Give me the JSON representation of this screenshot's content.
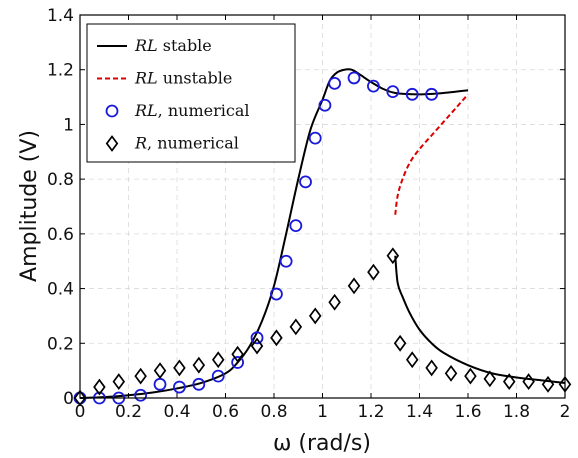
{
  "chart_data": {
    "type": "line",
    "title": "",
    "xlabel": "ω (rad/s)",
    "ylabel": "Amplitude (V)",
    "xlim": [
      0,
      2
    ],
    "ylim": [
      0,
      1.4
    ],
    "xticks": [
      "0",
      "0.2",
      "0.4",
      "0.6",
      "0.8",
      "1",
      "1.2",
      "1.4",
      "1.6",
      "1.8",
      "2"
    ],
    "yticks": [
      "0",
      "0.2",
      "0.4",
      "0.6",
      "0.8",
      "1",
      "1.2",
      "1.4"
    ],
    "grid": true,
    "legend_position": "top-left",
    "series": [
      {
        "name": "RL stable",
        "legend_italic": "RL",
        "legend_rest": " stable",
        "style": "solid-line",
        "color": "#000000",
        "x": [
          0.0,
          0.1,
          0.2,
          0.3,
          0.4,
          0.5,
          0.6,
          0.65,
          0.7,
          0.75,
          0.8,
          0.85,
          0.9,
          0.95,
          1.0,
          1.03,
          1.06,
          1.09,
          1.12,
          1.15,
          1.2,
          1.25,
          1.3,
          1.4,
          1.5,
          1.6
        ],
        "y": [
          0.0,
          0.003,
          0.01,
          0.02,
          0.035,
          0.055,
          0.09,
          0.13,
          0.19,
          0.28,
          0.41,
          0.6,
          0.8,
          0.98,
          1.09,
          1.16,
          1.19,
          1.2,
          1.2,
          1.185,
          1.155,
          1.13,
          1.115,
          1.11,
          1.115,
          1.125
        ]
      },
      {
        "name": "RL unstable",
        "legend_italic": "RL",
        "legend_rest": " unstable",
        "style": "dashed-line",
        "color": "#dd0000",
        "x": [
          1.3,
          1.31,
          1.33,
          1.36,
          1.4,
          1.45,
          1.5,
          1.55,
          1.6
        ],
        "y": [
          0.67,
          0.74,
          0.8,
          0.86,
          0.91,
          0.96,
          1.01,
          1.06,
          1.11
        ]
      },
      {
        "name": "RL, numerical",
        "legend_italic": "RL",
        "legend_rest": ", numerical",
        "style": "circle-markers",
        "color": "#1a1adb",
        "x": [
          0.0,
          0.08,
          0.16,
          0.25,
          0.33,
          0.41,
          0.49,
          0.57,
          0.65,
          0.73,
          0.81,
          0.85,
          0.89,
          0.93,
          0.97,
          1.01,
          1.05,
          1.13,
          1.21,
          1.29,
          1.37,
          1.45
        ],
        "y": [
          0.0,
          0.0,
          0.0,
          0.01,
          0.05,
          0.04,
          0.05,
          0.08,
          0.13,
          0.22,
          0.38,
          0.5,
          0.63,
          0.79,
          0.95,
          1.07,
          1.15,
          1.17,
          1.14,
          1.12,
          1.11,
          1.11
        ]
      },
      {
        "name": "R, numerical",
        "legend_italic": "R",
        "legend_rest": ", numerical",
        "style": "diamond-markers",
        "color": "#000000",
        "x": [
          0.0,
          0.08,
          0.16,
          0.25,
          0.33,
          0.41,
          0.49,
          0.57,
          0.65,
          0.73,
          0.81,
          0.89,
          0.97,
          1.05,
          1.13,
          1.21,
          1.29,
          1.32,
          1.37,
          1.45,
          1.53,
          1.61,
          1.69,
          1.77,
          1.85,
          1.93,
          2.0
        ],
        "y": [
          0.0,
          0.04,
          0.06,
          0.08,
          0.1,
          0.11,
          0.12,
          0.14,
          0.16,
          0.19,
          0.22,
          0.26,
          0.3,
          0.35,
          0.41,
          0.46,
          0.52,
          0.2,
          0.14,
          0.11,
          0.09,
          0.08,
          0.07,
          0.06,
          0.06,
          0.05,
          0.05
        ]
      },
      {
        "name": "",
        "style": "solid-line-unlabeled",
        "color": "#000000",
        "x": [
          1.3,
          1.31,
          1.33,
          1.36,
          1.4,
          1.45,
          1.5,
          1.6,
          1.7,
          1.8,
          1.9,
          2.0
        ],
        "y": [
          0.52,
          0.42,
          0.37,
          0.31,
          0.25,
          0.2,
          0.165,
          0.12,
          0.09,
          0.075,
          0.065,
          0.055
        ]
      }
    ]
  }
}
